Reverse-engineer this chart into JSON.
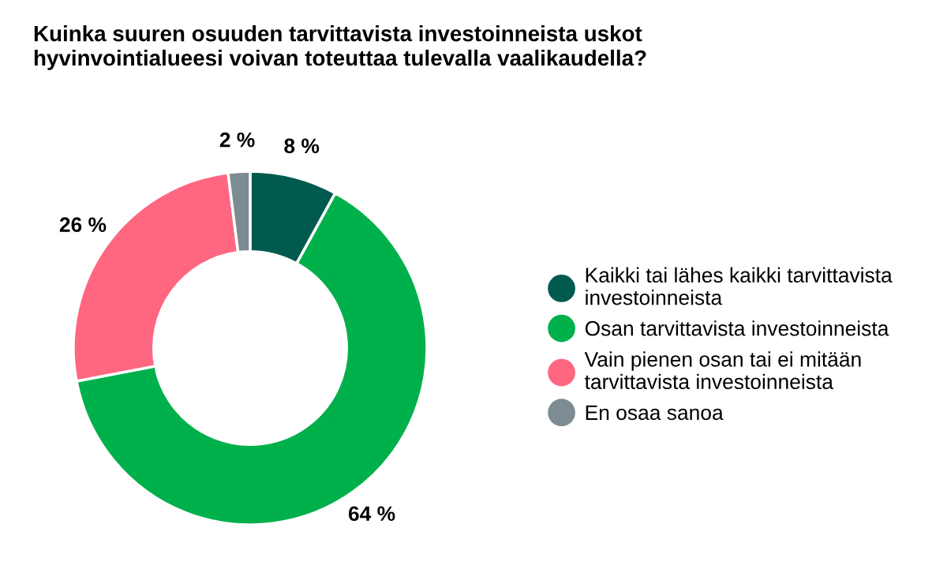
{
  "chart_data": {
    "type": "donut",
    "title": "Kuinka suuren osuuden tarvittavista investoinneista uskot\nhyvinvointialueesi voivan toteuttaa tulevalla vaalikaudella?",
    "categories": [
      "Kaikki tai lähes kaikki tarvittavista\ninvestoinneista",
      "Osan tarvittavista investoinneista",
      "Vain pienen osan tai ei mitään\ntarvittavista investoinneista",
      "En osaa sanoa"
    ],
    "values": [
      8,
      64,
      26,
      2
    ],
    "value_labels": [
      "8 %",
      "64 %",
      "26 %",
      "2 %"
    ],
    "colors": [
      "#005a4e",
      "#00b04a",
      "#ff6680",
      "#7d8b93"
    ],
    "legend": "right"
  }
}
